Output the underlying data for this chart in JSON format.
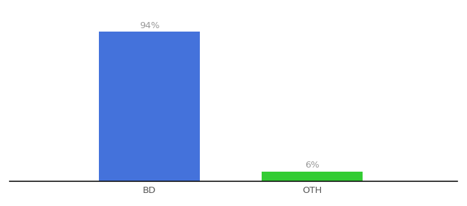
{
  "categories": [
    "BD",
    "OTH"
  ],
  "values": [
    94,
    6
  ],
  "bar_colors": [
    "#4472db",
    "#33cc33"
  ],
  "label_texts": [
    "94%",
    "6%"
  ],
  "background_color": "#ffffff",
  "axis_line_color": "#111111",
  "label_color": "#999999",
  "tick_label_color": "#555555",
  "ylim": [
    0,
    105
  ],
  "bar_width": 0.18,
  "label_fontsize": 9.5,
  "tick_fontsize": 9.5,
  "x_positions": [
    0.33,
    0.62
  ],
  "xlim": [
    0.08,
    0.88
  ]
}
